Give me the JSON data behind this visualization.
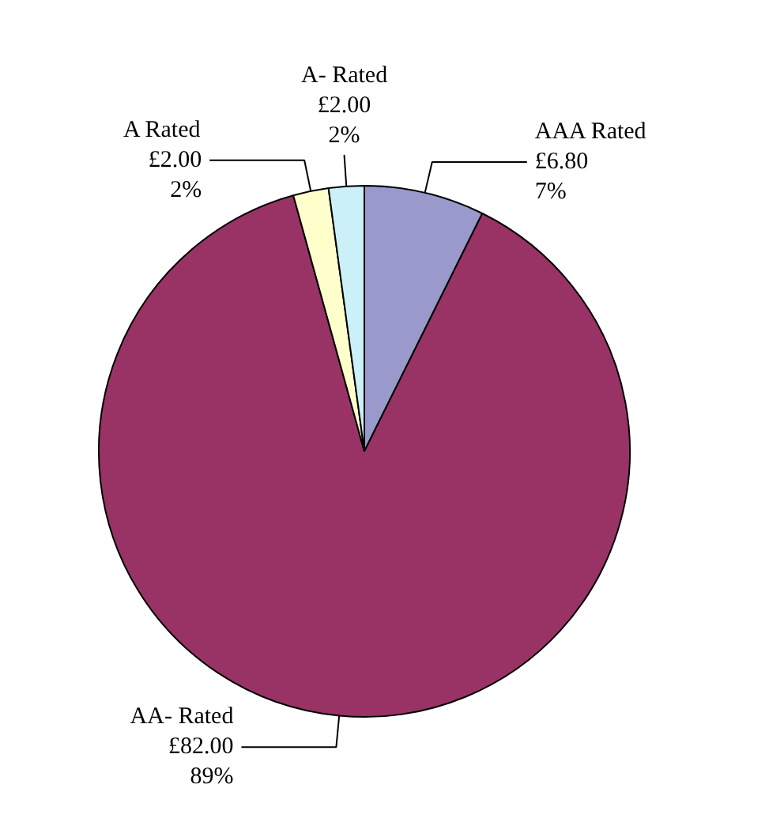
{
  "chart_data": {
    "type": "pie",
    "categories": [
      "AAA Rated",
      "AA- Rated",
      "A Rated",
      "A- Rated"
    ],
    "values": [
      6.8,
      82,
      2,
      2
    ],
    "colors": [
      "#9999cc",
      "#993366",
      "#ffffcc",
      "#ccf0f8"
    ],
    "value_labels": [
      "£6.80\n7%",
      "£82.00\n89%",
      "£2.00\n2%",
      "£2.00\n2%"
    ]
  }
}
